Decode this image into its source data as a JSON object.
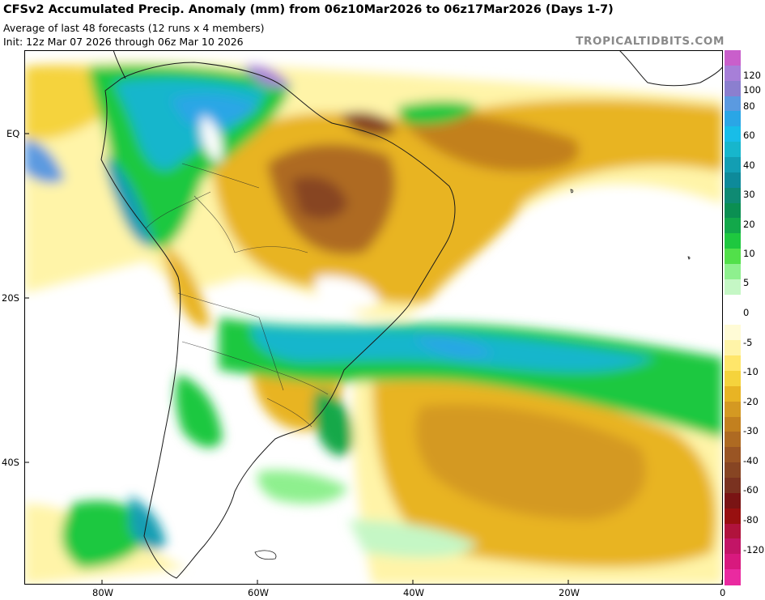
{
  "header": {
    "title": "CFSv2 Accumulated Precip. Anomaly (mm) from 06z10Mar2026 to 06z17Mar2026 (Days 1-7)",
    "subtitle1": "Average of last 48 forecasts (12 runs x 4 members)",
    "subtitle2": "Init: 12z Mar 07 2026 through 06z Mar 10 2026",
    "brand": "TROPICALTIDBITS.COM"
  },
  "axes": {
    "lat_labels": [
      "EQ",
      "20S",
      "40S"
    ],
    "lon_labels": [
      "80W",
      "60W",
      "40W",
      "20W",
      "0"
    ]
  },
  "colorbar": {
    "labels": [
      "120",
      "100",
      "80",
      "60",
      "40",
      "30",
      "20",
      "10",
      "5",
      "0",
      "-5",
      "-10",
      "-20",
      "-30",
      "-40",
      "-60",
      "-80",
      "-120"
    ],
    "colors": [
      "#c95fcb",
      "#a77fd8",
      "#8b7fcf",
      "#5b9ae0",
      "#2aa6e6",
      "#18bde8",
      "#17b6cc",
      "#139eb3",
      "#0e8a9a",
      "#0f8a73",
      "#0b8f52",
      "#12a84a",
      "#1ec83f",
      "#52e04a",
      "#8ef08e",
      "#c5f7c5",
      "#ffffff",
      "#ffffff",
      "#fffbd6",
      "#fff4a8",
      "#ffe66a",
      "#f5d33c",
      "#e8b424",
      "#d49922",
      "#c2801f",
      "#ae6a22",
      "#9a5524",
      "#874523",
      "#7a3220",
      "#7a1414",
      "#981010",
      "#b0133c",
      "#c21566",
      "#d8197e",
      "#ea2aa0"
    ]
  }
}
